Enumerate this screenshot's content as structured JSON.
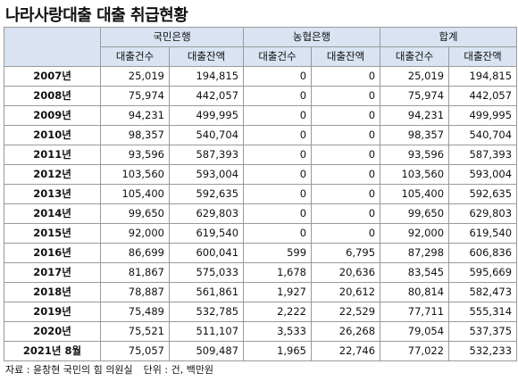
{
  "title": "나라사랑대출 대출 취급현황",
  "table": {
    "groups": [
      "국민은행",
      "농협은행",
      "합계"
    ],
    "subheaders": [
      "대출건수",
      "대출잔액",
      "대출건수",
      "대출잔액",
      "대출건수",
      "대출잔액"
    ],
    "rows": [
      [
        "2007년",
        "25,019",
        "194,815",
        "0",
        "0",
        "25,019",
        "194,815"
      ],
      [
        "2008년",
        "75,974",
        "442,057",
        "0",
        "0",
        "75,974",
        "442,057"
      ],
      [
        "2009년",
        "94,231",
        "499,995",
        "0",
        "0",
        "94,231",
        "499,995"
      ],
      [
        "2010년",
        "98,357",
        "540,704",
        "0",
        "0",
        "98,357",
        "540,704"
      ],
      [
        "2011년",
        "93,596",
        "587,393",
        "0",
        "0",
        "93,596",
        "587,393"
      ],
      [
        "2012년",
        "103,560",
        "593,004",
        "0",
        "0",
        "103,560",
        "593,004"
      ],
      [
        "2013년",
        "105,400",
        "592,635",
        "0",
        "0",
        "105,400",
        "592,635"
      ],
      [
        "2014년",
        "99,650",
        "629,803",
        "0",
        "0",
        "99,650",
        "629,803"
      ],
      [
        "2015년",
        "92,000",
        "619,540",
        "0",
        "0",
        "92,000",
        "619,540"
      ],
      [
        "2016년",
        "86,699",
        "600,041",
        "599",
        "6,795",
        "87,298",
        "606,836"
      ],
      [
        "2017년",
        "81,867",
        "575,033",
        "1,678",
        "20,636",
        "83,545",
        "595,669"
      ],
      [
        "2018년",
        "78,887",
        "561,861",
        "1,927",
        "20,612",
        "80,814",
        "582,473"
      ],
      [
        "2019년",
        "75,489",
        "532,785",
        "2,222",
        "22,529",
        "77,711",
        "555,314"
      ],
      [
        "2020년",
        "75,521",
        "511,107",
        "3,533",
        "26,268",
        "79,054",
        "537,375"
      ],
      [
        "2021년 8월",
        "75,057",
        "509,487",
        "1,965",
        "22,746",
        "77,022",
        "532,233"
      ]
    ]
  },
  "source": {
    "origin": "자료 : 윤창현 국민의 힘 의원실",
    "unit": "단위 : 건, 백만원"
  }
}
